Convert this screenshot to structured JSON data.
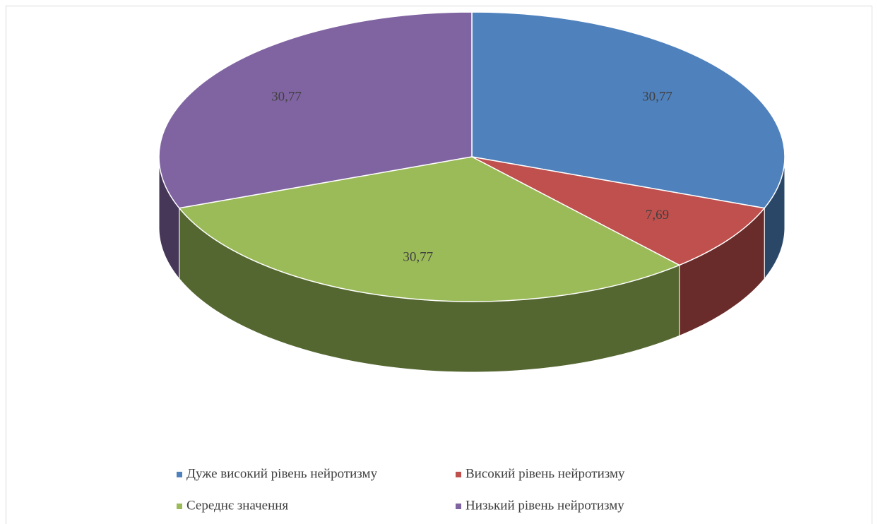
{
  "chart_data": {
    "type": "pie",
    "categories": [
      "Дуже високий рівень нейротизму",
      "Високий рівень нейротизму",
      "Середнє значення",
      "Низький рівень нейротизму"
    ],
    "values": [
      30.77,
      7.69,
      30.77,
      30.77
    ],
    "value_labels": [
      "30,77",
      "7,69",
      "30,77",
      "30,77"
    ],
    "colors": [
      "#4f81bd",
      "#c0504d",
      "#9bbb59",
      "#8064a2"
    ]
  }
}
